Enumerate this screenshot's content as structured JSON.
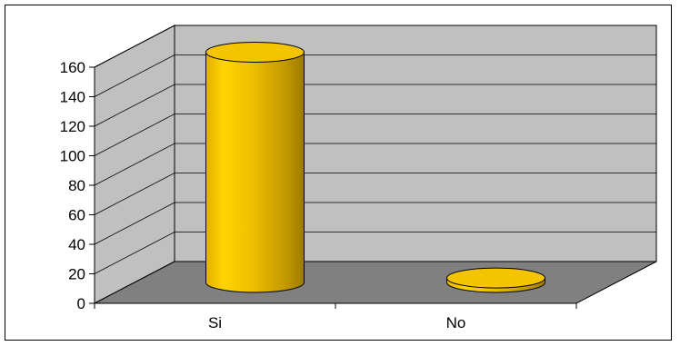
{
  "chart_data": {
    "type": "bar",
    "style": "3d-cylinder",
    "categories": [
      "Si",
      "No"
    ],
    "values": [
      156,
      3
    ],
    "ylim": [
      0,
      160
    ],
    "yticks": [
      0,
      20,
      40,
      60,
      80,
      100,
      120,
      140,
      160
    ],
    "grid": true,
    "legend": "none",
    "colors": {
      "bar": "#f5c400",
      "bar_dark": "#a88600",
      "bar_light": "#ffe44d",
      "back_wall": "#c0c0c0",
      "side_wall": "#c0c0c0",
      "floor": "#808080",
      "gridline": "#000000"
    }
  }
}
